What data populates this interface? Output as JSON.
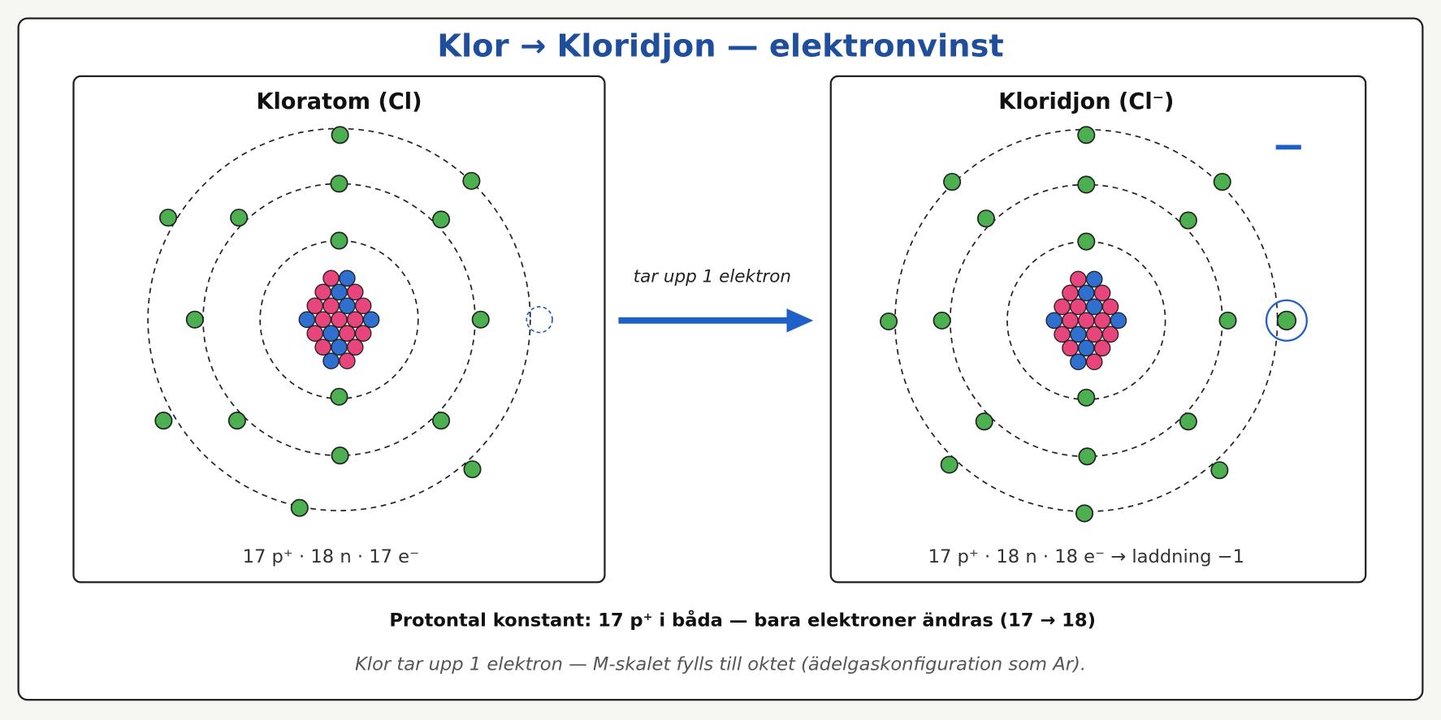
{
  "title": "Klor → Kloridjon — elektronvinst",
  "panels": [
    {
      "title": "Kloratom (Cl)",
      "stats": "17 p⁺ · 18 n · 17 e⁻"
    },
    {
      "title": "Kloridjon (Cl⁻)",
      "stats": "17 p⁺ · 18 n · 18 e⁻ → laddning −1",
      "charge": "−"
    }
  ],
  "arrow_label": "tar upp 1 elektron",
  "summary": "Protontal konstant: 17 p⁺ i båda — bara elektroner ändras (17 → 18)",
  "note": "Klor tar upp 1 elektron — M-skalet fylls till oktet (ädelgaskonfiguration som Ar)."
}
